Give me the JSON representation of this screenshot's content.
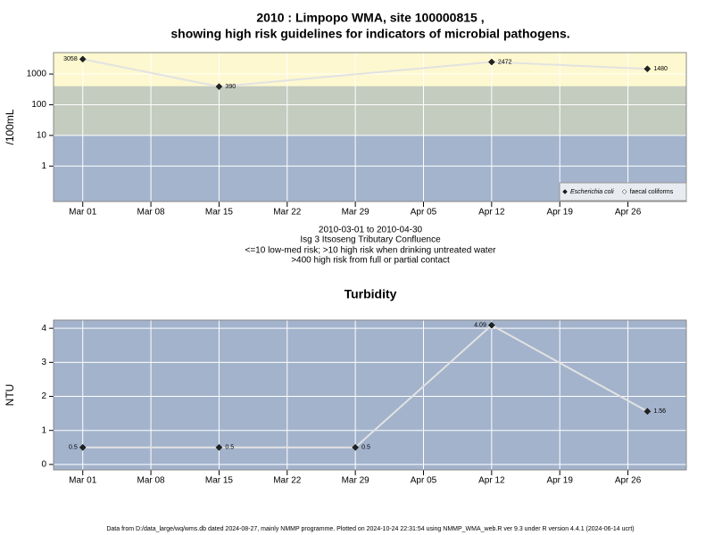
{
  "title": "2010 : Limpopo WMA, site 100000815 ,",
  "subtitle": "showing high risk guidelines for indicators of microbial pathogens.",
  "notes": [
    "2010-03-01 to 2010-04-30",
    "Isg 3 Itsoseng Tributary Confluence",
    "<=10 low-med risk; >10 high risk when drinking untreated water",
    ">400 high risk from full or partial contact"
  ],
  "footer": "Data from D:/data_large/wq/wms.db dated 2024-08-27, mainly NMMP programme. Plotted on 2024-10-24 22:31:54 using NMMP_WMA_web.R ver 9.3 under R version 4.4.1 (2024-06-14 ucrt)",
  "chart_data": [
    {
      "type": "line",
      "ylabel": "/100mL",
      "log_scale": true,
      "grid": true,
      "legend": "bottom-right",
      "x": [
        "2010-03-01",
        "2010-03-15",
        "2010-04-12",
        "2010-04-28"
      ],
      "series": [
        {
          "name": "Escherichia coli",
          "color": "#222222",
          "values": [
            3058,
            390,
            2472,
            1480
          ]
        },
        {
          "name": "faecal coliforms",
          "color": "#ffffff",
          "values": [
            null,
            null,
            null,
            null
          ]
        }
      ],
      "bands": [
        {
          "from": 0.07,
          "to": 10,
          "color": "#a4b4cd"
        },
        {
          "from": 10,
          "to": 400,
          "color": "#c4cbbf"
        },
        {
          "from": 400,
          "to": 5000,
          "color": "#fdf8cf"
        }
      ],
      "xlim": [
        "2010-02-26",
        "2010-05-02"
      ],
      "xticks": [
        {
          "value": "2010-03-01",
          "label": "Mar 01"
        },
        {
          "value": "2010-03-08",
          "label": "Mar 08"
        },
        {
          "value": "2010-03-15",
          "label": "Mar 15"
        },
        {
          "value": "2010-03-22",
          "label": "Mar 22"
        },
        {
          "value": "2010-03-29",
          "label": "Mar 29"
        },
        {
          "value": "2010-04-05",
          "label": "Apr 05"
        },
        {
          "value": "2010-04-12",
          "label": "Apr 12"
        },
        {
          "value": "2010-04-19",
          "label": "Apr 19"
        },
        {
          "value": "2010-04-26",
          "label": "Apr 26"
        }
      ],
      "ylim": [
        0.07,
        5000
      ],
      "yticks": [
        1,
        10,
        100,
        1000
      ]
    },
    {
      "type": "line",
      "title": "Turbidity",
      "ylabel": "NTU",
      "log_scale": false,
      "grid": true,
      "background": "#a3b3cc",
      "x": [
        "2010-03-01",
        "2010-03-15",
        "2010-03-29",
        "2010-04-12",
        "2010-04-28"
      ],
      "series": [
        {
          "name": "Turbidity",
          "color": "#222222",
          "values": [
            0.5,
            0.5,
            0.5,
            4.09,
            1.56
          ]
        }
      ],
      "xlim": [
        "2010-02-26",
        "2010-05-02"
      ],
      "xticks": [
        {
          "value": "2010-03-01",
          "label": "Mar 01"
        },
        {
          "value": "2010-03-08",
          "label": "Mar 08"
        },
        {
          "value": "2010-03-15",
          "label": "Mar 15"
        },
        {
          "value": "2010-03-22",
          "label": "Mar 22"
        },
        {
          "value": "2010-03-29",
          "label": "Mar 29"
        },
        {
          "value": "2010-04-05",
          "label": "Apr 05"
        },
        {
          "value": "2010-04-12",
          "label": "Apr 12"
        },
        {
          "value": "2010-04-19",
          "label": "Apr 19"
        },
        {
          "value": "2010-04-26",
          "label": "Apr 26"
        }
      ],
      "ylim": [
        -0.16,
        4.24
      ],
      "yticks": [
        0,
        1,
        2,
        3,
        4
      ]
    }
  ]
}
